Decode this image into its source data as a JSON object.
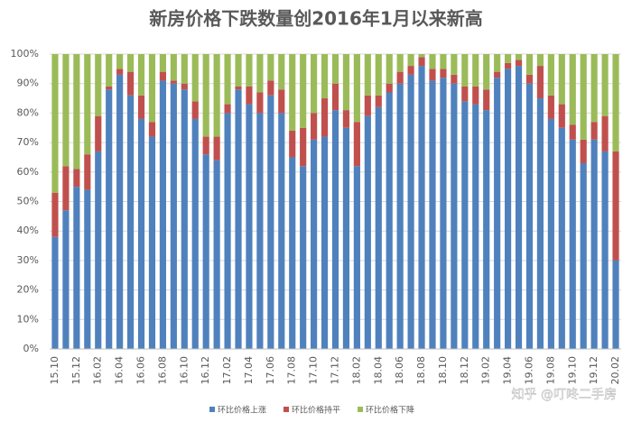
{
  "chart_data": {
    "type": "stacked_bar",
    "title": "新房价格下跌数量创2016年1月以来新高",
    "categories": [
      "15.10",
      null,
      "15.12",
      null,
      "16.02",
      null,
      "16.04",
      null,
      "16.06",
      null,
      "16.08",
      null,
      "16.10",
      null,
      "16.12",
      null,
      "17.02",
      null,
      "17.04",
      null,
      "17.06",
      null,
      "17.08",
      null,
      "17.10",
      null,
      "17.12",
      null,
      "18.02",
      null,
      "18.04",
      null,
      "18.06",
      null,
      "18.08",
      null,
      "18.10",
      null,
      "18.12",
      null,
      "19.02",
      null,
      "19.04",
      null,
      "19.06",
      null,
      "19.08",
      null,
      "19.10",
      null,
      "19.12",
      null,
      "20.02"
    ],
    "series": [
      {
        "name": "环比价格上涨",
        "color": "#4f81bd",
        "values": [
          38,
          47,
          55,
          54,
          67,
          88,
          93,
          86,
          78,
          72,
          91,
          90,
          88,
          78,
          66,
          64,
          80,
          88,
          83,
          80,
          86,
          80,
          65,
          62,
          71,
          72,
          81,
          75,
          62,
          79,
          82,
          87,
          90,
          93,
          96,
          91,
          92,
          90,
          84,
          83,
          81,
          92,
          95,
          96,
          90,
          85,
          78,
          75,
          71,
          63,
          71,
          67,
          30
        ]
      },
      {
        "name": "环比价格持平",
        "color": "#c0504d",
        "values": [
          15,
          15,
          6,
          12,
          12,
          1,
          2,
          8,
          8,
          5,
          3,
          1,
          2,
          6,
          6,
          8,
          3,
          1,
          6,
          7,
          5,
          8,
          9,
          13,
          9,
          13,
          9,
          6,
          15,
          7,
          4,
          3,
          4,
          3,
          3,
          4,
          3,
          3,
          5,
          6,
          7,
          2,
          2,
          2,
          3,
          11,
          8,
          8,
          5,
          8,
          6,
          12,
          37
        ]
      },
      {
        "name": "环比价格下降",
        "color": "#9bbb59",
        "values": [
          47,
          38,
          39,
          34,
          21,
          11,
          5,
          6,
          14,
          23,
          6,
          9,
          10,
          16,
          28,
          28,
          17,
          11,
          11,
          13,
          9,
          12,
          26,
          25,
          20,
          15,
          10,
          19,
          23,
          14,
          14,
          10,
          6,
          4,
          1,
          5,
          5,
          7,
          11,
          11,
          12,
          6,
          3,
          2,
          7,
          4,
          14,
          17,
          24,
          29,
          23,
          21,
          33
        ]
      }
    ],
    "ylim": [
      0,
      100
    ],
    "yticks": [
      {
        "value": 0,
        "label": "0%"
      },
      {
        "value": 10,
        "label": "10%"
      },
      {
        "value": 20,
        "label": "20%"
      },
      {
        "value": 30,
        "label": "30%"
      },
      {
        "value": 40,
        "label": "40%"
      },
      {
        "value": 50,
        "label": "50%"
      },
      {
        "value": 60,
        "label": "60%"
      },
      {
        "value": 70,
        "label": "70%"
      },
      {
        "value": 80,
        "label": "80%"
      },
      {
        "value": 90,
        "label": "90%"
      },
      {
        "value": 100,
        "label": "100%"
      }
    ],
    "grid": true,
    "legend": "bottom",
    "watermark": "知乎 @叮咚二手房"
  }
}
